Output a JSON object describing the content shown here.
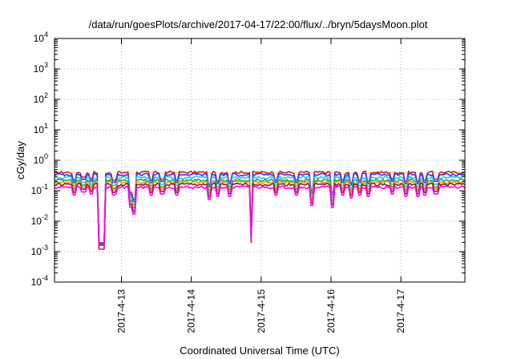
{
  "chart_data": {
    "type": "line",
    "title": "/data/run/goesPlots/archive/2017-04-17/22:00/flux/../bryn/5daysMoon.plot",
    "xlabel": "Coordinated Universal Time (UTC)",
    "ylabel": "cGy/day",
    "yscale": "log",
    "ylim": [
      0.0001,
      10000
    ],
    "y_ticks": [
      {
        "base": "10",
        "exp": "-4"
      },
      {
        "base": "10",
        "exp": "-3"
      },
      {
        "base": "10",
        "exp": "-2"
      },
      {
        "base": "10",
        "exp": "-1"
      },
      {
        "base": "10",
        "exp": "0"
      },
      {
        "base": "10",
        "exp": "1"
      },
      {
        "base": "10",
        "exp": "2"
      },
      {
        "base": "10",
        "exp": "3"
      },
      {
        "base": "10",
        "exp": "4"
      }
    ],
    "xlim": [
      "2017-04-12T01:00",
      "2017-04-17T22:00"
    ],
    "x_ticks": [
      "2017-4-13",
      "2017-4-14",
      "2017-4-15",
      "2017-4-16",
      "2017-4-17"
    ],
    "grid": true,
    "series": [
      {
        "color": "#e8121e",
        "baseline": 0.4
      },
      {
        "color": "#1e3cff",
        "baseline": 0.34
      },
      {
        "color": "#1ec8ff",
        "baseline": 0.27
      },
      {
        "color": "#22a845",
        "baseline": 0.22
      },
      {
        "color": "#ff8c00",
        "baseline": 0.19
      },
      {
        "color": "#8b1a3a",
        "baseline": 0.16
      },
      {
        "color": "#ff00e6",
        "baseline": 0.13
      }
    ],
    "dips": [
      {
        "t": "2017-04-12T08:00",
        "factor": 0.55
      },
      {
        "t": "2017-04-12T11:00",
        "factor": 0.7
      },
      {
        "t": "2017-04-12T13:30",
        "factor": 0.6
      },
      {
        "t": "2017-04-12T17:00",
        "factor": 0.65
      },
      {
        "t": "2017-04-12T21:00",
        "factor": 0.55
      },
      {
        "t": "2017-04-12T22:00",
        "factor": 0.6
      },
      {
        "t": "2017-04-12T17:00",
        "factor": 0.003,
        "width": 1.2
      },
      {
        "t": "2017-04-13T03:00",
        "factor": 0.22
      },
      {
        "t": "2017-04-13T04:30",
        "factor": 0.13
      },
      {
        "t": "2017-04-13T10:00",
        "factor": 0.55
      },
      {
        "t": "2017-04-13T14:00",
        "factor": 0.6
      },
      {
        "t": "2017-04-13T19:00",
        "factor": 0.55
      },
      {
        "t": "2017-04-14T06:00",
        "factor": 0.4
      },
      {
        "t": "2017-04-14T09:00",
        "factor": 0.5
      },
      {
        "t": "2017-04-14T13:00",
        "factor": 0.5
      },
      {
        "t": "2017-04-14T20:30",
        "factor": 0.005,
        "width": 0.5
      },
      {
        "t": "2017-04-15T05:00",
        "factor": 0.55
      },
      {
        "t": "2017-04-15T12:00",
        "factor": 0.55
      },
      {
        "t": "2017-04-15T17:30",
        "factor": 0.25
      },
      {
        "t": "2017-04-16T00:30",
        "factor": 0.22
      },
      {
        "t": "2017-04-16T04:00",
        "factor": 0.55
      },
      {
        "t": "2017-04-16T07:00",
        "factor": 0.45
      },
      {
        "t": "2017-04-16T10:00",
        "factor": 0.55
      },
      {
        "t": "2017-04-16T13:00",
        "factor": 0.5
      },
      {
        "t": "2017-04-16T21:00",
        "factor": 0.6
      },
      {
        "t": "2017-04-17T02:00",
        "factor": 0.5
      },
      {
        "t": "2017-04-17T06:00",
        "factor": 0.5
      },
      {
        "t": "2017-04-17T08:00",
        "factor": 0.55
      },
      {
        "t": "2017-04-17T12:00",
        "factor": 0.6
      }
    ]
  }
}
